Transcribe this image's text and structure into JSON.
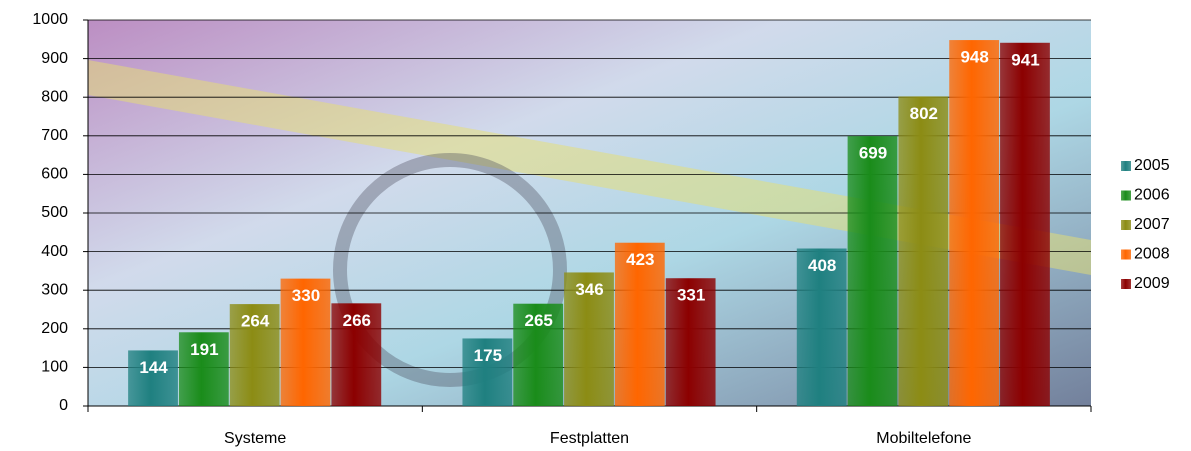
{
  "chart_data": {
    "type": "bar",
    "categories": [
      "Systeme",
      "Festplatten",
      "Mobiltelefone"
    ],
    "series": [
      {
        "name": "2005",
        "color": "#1f8080",
        "values": [
          144,
          175,
          408
        ]
      },
      {
        "name": "2006",
        "color": "#1a8c1a",
        "values": [
          191,
          265,
          699
        ]
      },
      {
        "name": "2007",
        "color": "#8c8c14",
        "values": [
          264,
          346,
          802
        ]
      },
      {
        "name": "2008",
        "color": "#ff6600",
        "values": [
          330,
          423,
          948
        ]
      },
      {
        "name": "2009",
        "color": "#8c0000",
        "values": [
          266,
          331,
          941
        ]
      }
    ],
    "ylim": [
      0,
      1000
    ],
    "yticks": [
      0,
      100,
      200,
      300,
      400,
      500,
      600,
      700,
      800,
      900,
      1000
    ],
    "grid": true,
    "legend": "right"
  }
}
